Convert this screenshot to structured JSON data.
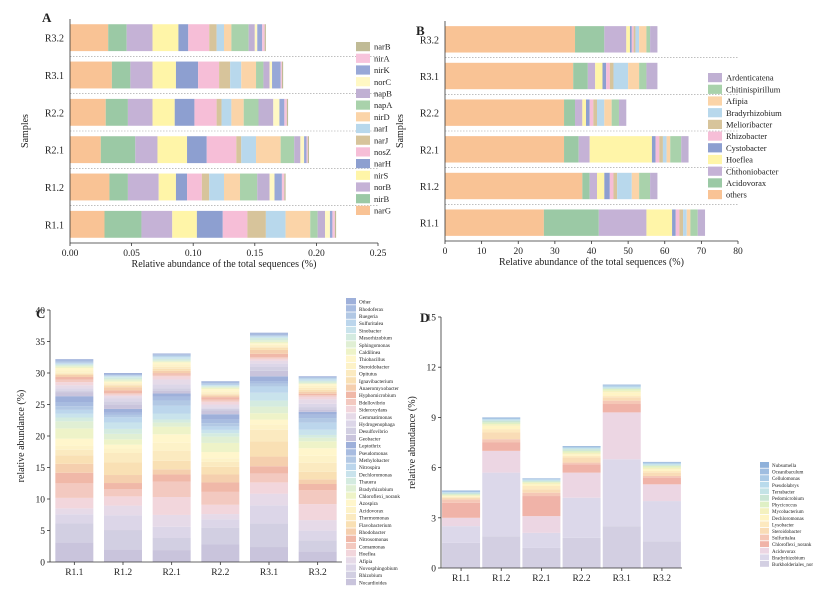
{
  "figure": "Relative abundance of functional genes and bacterial genera in samples",
  "chart_data": [
    {
      "panel": "A",
      "type": "bar",
      "orientation": "horizontal",
      "stacked": true,
      "xlabel": "Relative abundance of the total sequences (%)",
      "ylabel": "Samples",
      "xlim": [
        0,
        0.25
      ],
      "xticks": [
        "0.00",
        "0.05",
        "0.10",
        "0.15",
        "0.20",
        "0.25"
      ],
      "categories": [
        "R1.1",
        "R1.2",
        "R2.1",
        "R2.2",
        "R3.1",
        "R3.2"
      ],
      "legend": [
        "narB",
        "nirA",
        "nirK",
        "norC",
        "napB",
        "napA",
        "nirD",
        "narI",
        "narJ",
        "nosZ",
        "narH",
        "nirS",
        "norB",
        "nirB",
        "narG"
      ],
      "series": [
        {
          "name": "narG",
          "color": "#f9c395",
          "values": [
            0.028,
            0.032,
            0.025,
            0.029,
            0.034,
            0.031
          ]
        },
        {
          "name": "nirB",
          "color": "#9bc9a5",
          "values": [
            0.03,
            0.015,
            0.028,
            0.018,
            0.015,
            0.015
          ]
        },
        {
          "name": "norB",
          "color": "#c5b2d6",
          "values": [
            0.025,
            0.025,
            0.018,
            0.02,
            0.018,
            0.021
          ]
        },
        {
          "name": "nirS",
          "color": "#fff5a8",
          "values": [
            0.02,
            0.014,
            0.024,
            0.018,
            0.019,
            0.021
          ]
        },
        {
          "name": "narH",
          "color": "#8d9fd0",
          "values": [
            0.021,
            0.009,
            0.016,
            0.016,
            0.018,
            0.008
          ]
        },
        {
          "name": "nosZ",
          "color": "#f6bed7",
          "values": [
            0.02,
            0.012,
            0.024,
            0.018,
            0.017,
            0.017
          ]
        },
        {
          "name": "narJ",
          "color": "#d7c49b",
          "values": [
            0.015,
            0.006,
            0.004,
            0.004,
            0.009,
            0.006
          ]
        },
        {
          "name": "narI",
          "color": "#b8d8ec",
          "values": [
            0.016,
            0.012,
            0.012,
            0.008,
            0.009,
            0.006
          ]
        },
        {
          "name": "nirD",
          "color": "#fbd4a8",
          "values": [
            0.02,
            0.013,
            0.02,
            0.01,
            0.012,
            0.006
          ]
        },
        {
          "name": "napA",
          "color": "#a9d2ab",
          "values": [
            0.006,
            0.014,
            0.011,
            0.012,
            0.006,
            0.014
          ]
        },
        {
          "name": "napB",
          "color": "#c0b0d3",
          "values": [
            0.006,
            0.01,
            0.005,
            0.012,
            0.005,
            0.005
          ]
        },
        {
          "name": "norC",
          "color": "#fff8c4",
          "values": [
            0.004,
            0.004,
            0.003,
            0.005,
            0.002,
            0.002
          ]
        },
        {
          "name": "nirK",
          "color": "#98a8d7",
          "values": [
            0.002,
            0.006,
            0.002,
            0.004,
            0.007,
            0.004
          ]
        },
        {
          "name": "nirA",
          "color": "#f7c4dc",
          "values": [
            0.002,
            0.002,
            0.001,
            0.002,
            0.001,
            0.002
          ]
        },
        {
          "name": "narB",
          "color": "#c0bb96",
          "values": [
            0.001,
            0.001,
            0.001,
            0.001,
            0.001,
            0.001
          ]
        }
      ]
    },
    {
      "panel": "B",
      "type": "bar",
      "orientation": "horizontal",
      "stacked": true,
      "xlabel": "Relative abundance of the total sequences (%)",
      "ylabel": "Samples",
      "xlim": [
        0,
        80
      ],
      "xticks": [
        "0",
        "10",
        "20",
        "30",
        "40",
        "50",
        "60",
        "70",
        "80"
      ],
      "categories": [
        "R1.1",
        "R1.2",
        "R2.1",
        "R2.2",
        "R3.1",
        "R3.2"
      ],
      "legend": [
        "Ardenticatena",
        "Chitinispirillum",
        "Afipia",
        "Bradyrhizobium",
        "Melioribacter",
        "Rhizobacter",
        "Cystobacter",
        "Hoeflea",
        "Chthoniobacter",
        "Acidovorax",
        "others"
      ],
      "series": [
        {
          "name": "others",
          "color": "#f9c395",
          "values": [
            27,
            37.5,
            32.5,
            32.5,
            35,
            35.5
          ]
        },
        {
          "name": "Acidovorax",
          "color": "#9bc9a5",
          "values": [
            15,
            2,
            4,
            3,
            4,
            8
          ]
        },
        {
          "name": "Chthoniobacter",
          "color": "#c5b2d6",
          "values": [
            13,
            2,
            3,
            2,
            2,
            6
          ]
        },
        {
          "name": "Hoeflea",
          "color": "#fff5a8",
          "values": [
            7,
            2,
            17,
            1,
            2,
            1
          ]
        },
        {
          "name": "Cystobacter",
          "color": "#8d9fd0",
          "values": [
            1,
            1.5,
            1,
            1,
            1,
            0.5
          ]
        },
        {
          "name": "Rhizobacter",
          "color": "#f6bed7",
          "values": [
            1,
            1,
            1,
            1,
            1,
            0.5
          ]
        },
        {
          "name": "Melioribacter",
          "color": "#d7c49b",
          "values": [
            1,
            1,
            1,
            1,
            1,
            0.5
          ]
        },
        {
          "name": "Bradyrhizobium",
          "color": "#b8d8ec",
          "values": [
            1,
            4,
            1,
            2,
            4,
            1
          ]
        },
        {
          "name": "Afipia",
          "color": "#fbd4a8",
          "values": [
            1,
            2,
            1,
            2,
            3,
            2
          ]
        },
        {
          "name": "Chitinispirillum",
          "color": "#a9d2ab",
          "values": [
            2,
            3,
            3,
            2,
            2,
            1
          ]
        },
        {
          "name": "Ardenticatena",
          "color": "#c0b0d3",
          "values": [
            2,
            2,
            2,
            2,
            3,
            2
          ]
        }
      ]
    },
    {
      "panel": "C",
      "type": "bar",
      "orientation": "vertical",
      "stacked": true,
      "xlabel": "",
      "ylabel": "relative abundance (%)",
      "ylim": [
        0,
        40
      ],
      "yticks": [
        "0",
        "5",
        "10",
        "15",
        "20",
        "25",
        "30",
        "35",
        "40"
      ],
      "categories": [
        "R1.1",
        "R1.2",
        "R2.1",
        "R2.2",
        "R3.1",
        "R3.2"
      ],
      "totals": [
        32.2,
        30.0,
        33.1,
        28.7,
        36.4,
        29.5
      ],
      "legend": [
        "Other",
        "Rhodoferax",
        "Ruegeria",
        "Sulfuritalea",
        "Sinobacter",
        "Mesorhizobium",
        "Sphingomonas",
        "Caldilinea",
        "Thiobacillus",
        "Steroidobacter",
        "Opitutus",
        "Ignavibacterium",
        "Anaeromyxobacter",
        "Hyphomicrobium",
        "Bdellovibrio",
        "Sideroxydans",
        "Gemmatimonas",
        "Hydrogenophaga",
        "Desulfovibrio",
        "Geobacter",
        "Leptothrix",
        "Pseudomonas",
        "Methylobacter",
        "Nitrospira",
        "Dechloromonas",
        "Thauera",
        "Bradyrhizobium",
        "Chloroflexi_norank",
        "Azospira",
        "Acidovorax",
        "Thermomonas",
        "Flavobacterium",
        "Rhodobacter",
        "Nitrosomonas",
        "Comamonas",
        "Hoeflea",
        "Afipia",
        "Novosphingobium",
        "Rhizobium",
        "Nocardioides"
      ],
      "palette": [
        "#c9c4dc",
        "#d2cfe2",
        "#dcd6e8",
        "#e6dae8",
        "#f2d6dc",
        "#f3c9c0",
        "#f0b8a8",
        "#f5cfae",
        "#f9e0b4",
        "#fbeac0",
        "#fdf2c8",
        "#fff6cc",
        "#eef3c8",
        "#e0efd4",
        "#d4ebe0",
        "#c9e3ec",
        "#bcd6ec",
        "#b2c8e4",
        "#a8bce0",
        "#9eb0da"
      ]
    },
    {
      "panel": "D",
      "type": "bar",
      "orientation": "vertical",
      "stacked": true,
      "xlabel": "",
      "ylabel": "relative abundance (%)",
      "ylim": [
        0,
        15
      ],
      "yticks": [
        "0",
        "3",
        "6",
        "9",
        "12",
        "15"
      ],
      "categories": [
        "R1.1",
        "R1.2",
        "R2.1",
        "R2.2",
        "R3.1",
        "R3.2"
      ],
      "legend": [
        "Nubsumella",
        "Oceanibaculum",
        "Cellulomonas",
        "Pseudolabrys",
        "Terrabacter",
        "Pedomicrobium",
        "Phycicoccus",
        "Mycobacterium",
        "Dechloromonas",
        "Lysobacter",
        "Steroidobacter",
        "Sulfuritalea",
        "Chloroflexi_norank",
        "Acidovorax",
        "Bradyrhizobium",
        "Burkholderiales_norank"
      ],
      "series": [
        {
          "name": "Burkholderiales_norank",
          "color": "#d3cfe2",
          "values": [
            1.5,
            1.9,
            1.2,
            1.8,
            2.5,
            1.6
          ]
        },
        {
          "name": "Bradyrhizobium",
          "color": "#dcd8ea",
          "values": [
            1.0,
            3.8,
            0.9,
            2.4,
            4.0,
            2.4
          ]
        },
        {
          "name": "Acidovorax",
          "color": "#ecd6e3",
          "values": [
            0.5,
            1.3,
            1.0,
            1.5,
            2.8,
            1.0
          ]
        },
        {
          "name": "Chloroflexi_norank",
          "color": "#f0b3a8",
          "values": [
            0.9,
            0.5,
            1.2,
            0.5,
            0.5,
            0.4
          ]
        },
        {
          "name": "Sulfuritalea",
          "color": "#f5c7b6",
          "values": [
            0.2,
            0.2,
            0.2,
            0.1,
            0.2,
            0.1
          ]
        },
        {
          "name": "Steroidobacter",
          "color": "#f9dcb6",
          "values": [
            0.1,
            0.4,
            0.2,
            0.3,
            0.2,
            0.2
          ]
        },
        {
          "name": "Lysobacter",
          "color": "#fde9bf",
          "values": [
            0.05,
            0.2,
            0.2,
            0.1,
            0.1,
            0.1
          ]
        },
        {
          "name": "Dechloromonas",
          "color": "#fff4c4",
          "values": [
            0.05,
            0.2,
            0.1,
            0.1,
            0.2,
            0.1
          ]
        },
        {
          "name": "Mycobacterium",
          "color": "#f4f1bf",
          "values": [
            0.05,
            0.1,
            0.1,
            0.1,
            0.1,
            0.1
          ]
        },
        {
          "name": "Phycicoccus",
          "color": "#dff0c5",
          "values": [
            0.05,
            0.1,
            0.05,
            0.1,
            0.1,
            0.1
          ]
        },
        {
          "name": "Pedomicrobium",
          "color": "#cbe6d5",
          "values": [
            0.05,
            0.1,
            0.05,
            0.1,
            0.05,
            0.05
          ]
        },
        {
          "name": "Terrabacter",
          "color": "#c4e3e6",
          "values": [
            0.04,
            0.05,
            0.05,
            0.05,
            0.05,
            0.05
          ]
        },
        {
          "name": "Pseudolabrys",
          "color": "#b9dbec",
          "values": [
            0.04,
            0.04,
            0.03,
            0.05,
            0.05,
            0.04
          ]
        },
        {
          "name": "Cellulomonas",
          "color": "#abcae6",
          "values": [
            0.04,
            0.04,
            0.03,
            0.04,
            0.05,
            0.04
          ]
        },
        {
          "name": "Oceanibaculum",
          "color": "#9fbde0",
          "values": [
            0.03,
            0.04,
            0.02,
            0.02,
            0.03,
            0.03
          ]
        },
        {
          "name": "Nubsumella",
          "color": "#8fb1da",
          "values": [
            0.03,
            0.03,
            0.03,
            0.03,
            0.03,
            0.03
          ]
        }
      ]
    }
  ]
}
